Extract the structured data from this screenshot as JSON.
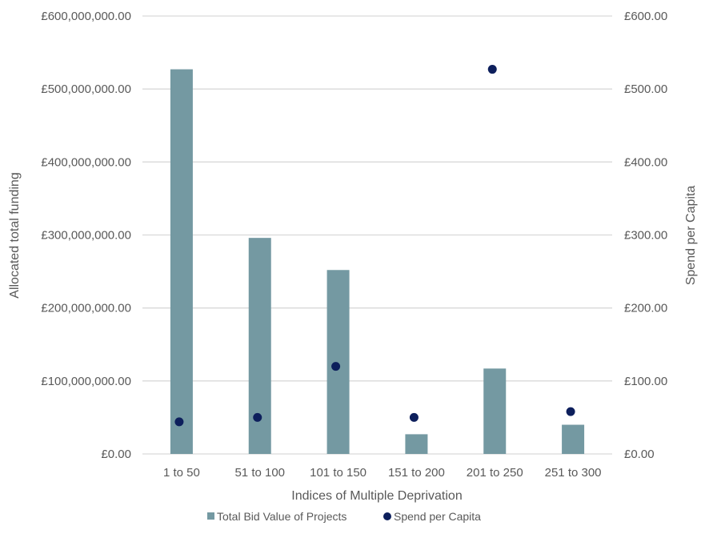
{
  "chart_data": {
    "type": "bar",
    "title": "",
    "xlabel": "Indices of Multiple Deprivation",
    "ylabel": "Allocated total funding",
    "y2label": "Spend per Capita",
    "categories": [
      "1 to 50",
      "51 to 100",
      "101 to 150",
      "151 to 200",
      "201 to 250",
      "251 to 300"
    ],
    "series": [
      {
        "name": "Total Bid Value of Projects",
        "type": "bar",
        "axis": "left",
        "color": "#7499A2",
        "values": [
          527000000,
          296000000,
          252000000,
          27000000,
          117000000,
          40000000
        ]
      },
      {
        "name": "Spend per Capita",
        "type": "scatter",
        "axis": "right",
        "color": "#0D1F5C",
        "values": [
          44,
          50,
          120,
          50,
          527,
          58
        ]
      }
    ],
    "ylim": [
      0,
      600000000
    ],
    "y2lim": [
      0,
      600
    ],
    "yticks": [
      "£0.00",
      "£100,000,000.00",
      "£200,000,000.00",
      "£300,000,000.00",
      "£400,000,000.00",
      "£500,000,000.00",
      "£600,000,000.00"
    ],
    "y2ticks": [
      "£0.00",
      "£100.00",
      "£200.00",
      "£300.00",
      "£400.00",
      "£500.00",
      "£600.00"
    ],
    "grid": true,
    "legend_position": "bottom"
  }
}
